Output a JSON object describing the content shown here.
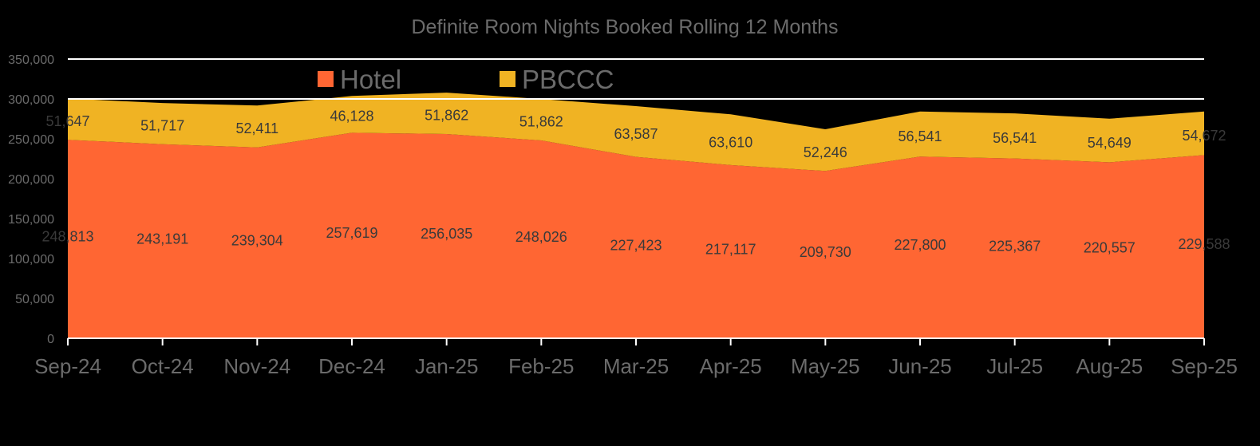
{
  "chart_data": {
    "type": "area",
    "stacked": true,
    "title": "Definite Room Nights Booked  Rolling  12 Months",
    "categories": [
      "Sep-24",
      "Oct-24",
      "Nov-24",
      "Dec-24",
      "Jan-25",
      "Feb-25",
      "Mar-25",
      "Apr-25",
      "May-25",
      "Jun-25",
      "Jul-25",
      "Aug-25",
      "Sep-25"
    ],
    "series": [
      {
        "name": "Hotel",
        "color": "#ff6633",
        "values": [
          248813,
          243191,
          239304,
          257619,
          256035,
          248026,
          227423,
          217117,
          209730,
          227800,
          225367,
          220557,
          229588
        ],
        "labels": [
          "248,813",
          "243,191",
          "239,304",
          "257,619",
          "256,035",
          "248,026",
          "227,423",
          "217,117",
          "209,730",
          "227,800",
          "225,367",
          "220,557",
          "229,588"
        ]
      },
      {
        "name": "PBCCC",
        "color": "#f0b323",
        "values": [
          51647,
          51717,
          52411,
          46128,
          51862,
          51862,
          63587,
          63610,
          52246,
          56541,
          56541,
          54649,
          54672
        ],
        "labels": [
          "51,647",
          "51,717",
          "52,411",
          "46,128",
          "51,862",
          "51,862",
          "63,587",
          "63,610",
          "52,246",
          "56,541",
          "56,541",
          "54,649",
          "54,672"
        ]
      }
    ],
    "yticks": [
      0,
      50000,
      100000,
      150000,
      200000,
      250000,
      300000,
      350000
    ],
    "ytick_labels": [
      "0",
      "50,000",
      "100,000",
      "150,000",
      "200,000",
      "250,000",
      "300,000",
      "350,000"
    ],
    "ylim": [
      0,
      350000
    ],
    "gridlines_at": [
      300000,
      350000
    ],
    "grid_color": "#ffffff",
    "legend_position": "top-center",
    "background": "#000000",
    "xlabel": "",
    "ylabel": ""
  }
}
